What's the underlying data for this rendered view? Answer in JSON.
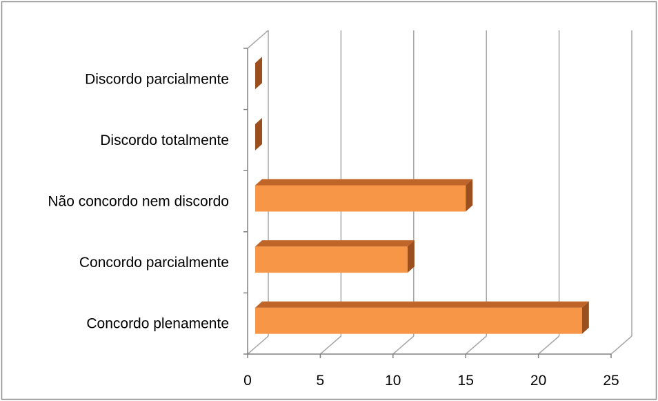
{
  "chart_data": {
    "type": "bar",
    "orientation": "horizontal",
    "style": "3d",
    "categories": [
      "Concordo plenamente",
      "Concordo parcialmente",
      "Não concordo nem discordo",
      "Discordo totalmente",
      "Discordo parcialmente"
    ],
    "values": [
      23,
      11,
      15,
      0,
      0
    ],
    "xlim": [
      0,
      25
    ],
    "xticks": [
      "0",
      "5",
      "10",
      "15",
      "20",
      "25"
    ],
    "title": "",
    "xlabel": "",
    "ylabel": "",
    "grid": "vertical",
    "legend": "none",
    "colors": {
      "bar_front": "#F79646",
      "bar_top": "#C0652A",
      "bar_side": "#9C4F1E",
      "gridline": "#A6A6A6",
      "axis": "#808080",
      "border": "#8C8C8C"
    }
  }
}
